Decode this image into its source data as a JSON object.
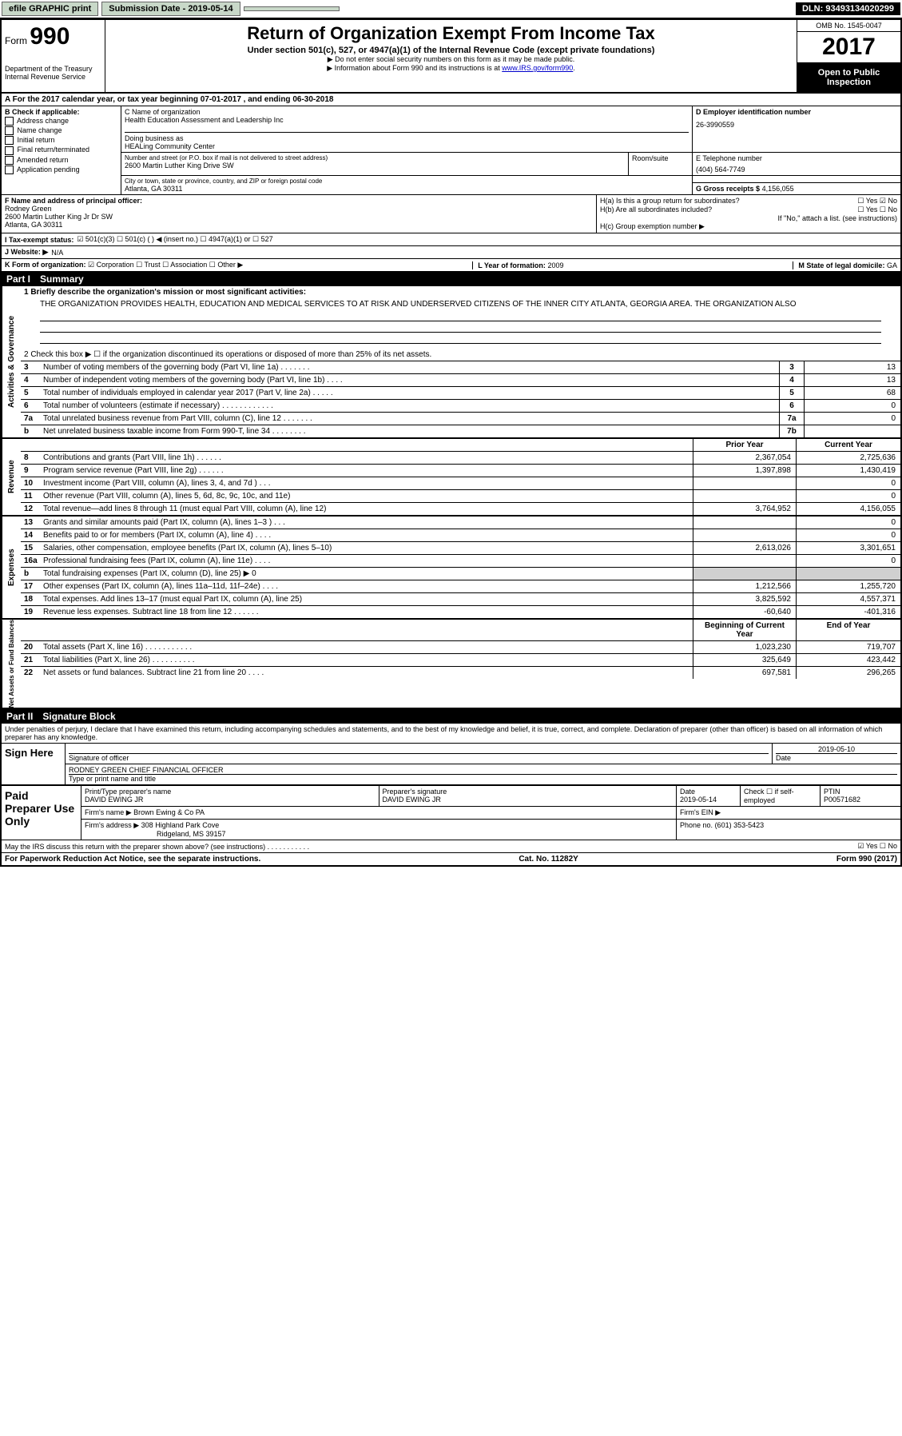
{
  "topbar": {
    "efile": "efile GRAPHIC print",
    "submission_label": "Submission Date - 2019-05-14",
    "dln": "DLN: 93493134020299"
  },
  "header": {
    "form_prefix": "Form",
    "form_number": "990",
    "dept": "Department of the Treasury",
    "irs": "Internal Revenue Service",
    "title": "Return of Organization Exempt From Income Tax",
    "subtitle": "Under section 501(c), 527, or 4947(a)(1) of the Internal Revenue Code (except private foundations)",
    "note1": "▶ Do not enter social security numbers on this form as it may be made public.",
    "note2": "▶ Information about Form 990 and its instructions is at www.IRS.gov/form990.",
    "omb": "OMB No. 1545-0047",
    "year": "2017",
    "open": "Open to Public Inspection"
  },
  "line_a": "A For the 2017 calendar year, or tax year beginning 07-01-2017    , and ending 06-30-2018",
  "box_b": {
    "header": "B Check if applicable:",
    "items": [
      "Address change",
      "Name change",
      "Initial return",
      "Final return/terminated",
      "Amended return",
      "Application pending"
    ]
  },
  "box_c": {
    "name_label": "C Name of organization",
    "name": "Health Education Assessment and Leadership Inc",
    "dba_label": "Doing business as",
    "dba": "HEALing Community Center",
    "addr_label": "Number and street (or P.O. box if mail is not delivered to street address)",
    "addr": "2600 Martin Luther King Drive SW",
    "room_label": "Room/suite",
    "city_label": "City or town, state or province, country, and ZIP or foreign postal code",
    "city": "Atlanta, GA  30311"
  },
  "box_d": {
    "label": "D Employer identification number",
    "value": "26-3990559"
  },
  "box_e": {
    "label": "E Telephone number",
    "value": "(404) 564-7749"
  },
  "box_g": {
    "label": "G Gross receipts $",
    "value": "4,156,055"
  },
  "box_f": {
    "label": "F Name and address of principal officer:",
    "name": "Rodney Green",
    "addr1": "2600 Martin Luther King Jr Dr SW",
    "addr2": "Atlanta, GA  30311"
  },
  "box_h": {
    "ha": "H(a) Is this a group return for subordinates?",
    "ha_yn": "☐ Yes ☑ No",
    "hb": "H(b) Are all subordinates included?",
    "hb_yn": "☐ Yes ☐ No",
    "hb_note": "If \"No,\" attach a list. (see instructions)",
    "hc": "H(c) Group exemption number ▶"
  },
  "line_i": {
    "label": "I    Tax-exempt status:",
    "opts": "☑ 501(c)(3)   ☐ 501(c) (  ) ◀ (insert no.)   ☐ 4947(a)(1) or   ☐ 527"
  },
  "line_j": {
    "label": "J    Website: ▶",
    "value": "N/A"
  },
  "line_k": {
    "label": "K Form of organization:",
    "opts": "☑ Corporation  ☐ Trust  ☐ Association  ☐ Other ▶"
  },
  "line_l": {
    "label": "L Year of formation:",
    "value": "2009"
  },
  "line_m": {
    "label": "M State of legal domicile:",
    "value": "GA"
  },
  "part1": {
    "header": "Part I",
    "title": "Summary",
    "l1": "1  Briefly describe the organization's mission or most significant activities:",
    "mission": "THE ORGANIZATION PROVIDES HEALTH, EDUCATION AND MEDICAL SERVICES TO AT RISK AND UNDERSERVED CITIZENS OF THE INNER CITY ATLANTA, GEORGIA AREA. THE ORGANIZATION ALSO",
    "l2": "2  Check this box ▶ ☐ if the organization discontinued its operations or disposed of more than 25% of its net assets.",
    "vtabs": {
      "ag": "Activities & Governance",
      "rev": "Revenue",
      "exp": "Expenses",
      "net": "Net Assets or Fund Balances"
    },
    "gov_rows": [
      {
        "num": "3",
        "label": "Number of voting members of the governing body (Part VI, line 1a)  .  .  .  .  .  .  .",
        "box": "3",
        "val": "13"
      },
      {
        "num": "4",
        "label": "Number of independent voting members of the governing body (Part VI, line 1b)  .  .  .  .",
        "box": "4",
        "val": "13"
      },
      {
        "num": "5",
        "label": "Total number of individuals employed in calendar year 2017 (Part V, line 2a)  .  .  .  .  .",
        "box": "5",
        "val": "68"
      },
      {
        "num": "6",
        "label": "Total number of volunteers (estimate if necessary)  .  .  .  .  .  .  .  .  .  .  .  .",
        "box": "6",
        "val": "0"
      },
      {
        "num": "7a",
        "label": "Total unrelated business revenue from Part VIII, column (C), line 12  .  .  .  .  .  .  .",
        "box": "7a",
        "val": "0"
      },
      {
        "num": "b",
        "label": "Net unrelated business taxable income from Form 990-T, line 34  .  .  .  .  .  .  .  .",
        "box": "7b",
        "val": ""
      }
    ],
    "col_prior": "Prior Year",
    "col_curr": "Current Year",
    "rev_rows": [
      {
        "num": "8",
        "label": "Contributions and grants (Part VIII, line 1h)  .  .  .  .  .  .",
        "prior": "2,367,054",
        "curr": "2,725,636"
      },
      {
        "num": "9",
        "label": "Program service revenue (Part VIII, line 2g)  .  .  .  .  .  .",
        "prior": "1,397,898",
        "curr": "1,430,419"
      },
      {
        "num": "10",
        "label": "Investment income (Part VIII, column (A), lines 3, 4, and 7d )  .  .  .",
        "prior": "",
        "curr": "0"
      },
      {
        "num": "11",
        "label": "Other revenue (Part VIII, column (A), lines 5, 6d, 8c, 9c, 10c, and 11e)",
        "prior": "",
        "curr": "0"
      },
      {
        "num": "12",
        "label": "Total revenue—add lines 8 through 11 (must equal Part VIII, column (A), line 12)",
        "prior": "3,764,952",
        "curr": "4,156,055"
      }
    ],
    "exp_rows": [
      {
        "num": "13",
        "label": "Grants and similar amounts paid (Part IX, column (A), lines 1–3 )  .  .  .",
        "prior": "",
        "curr": "0"
      },
      {
        "num": "14",
        "label": "Benefits paid to or for members (Part IX, column (A), line 4)  .  .  .  .",
        "prior": "",
        "curr": "0"
      },
      {
        "num": "15",
        "label": "Salaries, other compensation, employee benefits (Part IX, column (A), lines 5–10)",
        "prior": "2,613,026",
        "curr": "3,301,651"
      },
      {
        "num": "16a",
        "label": "Professional fundraising fees (Part IX, column (A), line 11e)  .  .  .  .",
        "prior": "",
        "curr": "0"
      },
      {
        "num": "b",
        "label": "Total fundraising expenses (Part IX, column (D), line 25) ▶ 0",
        "prior": "GREY",
        "curr": "GREY"
      },
      {
        "num": "17",
        "label": "Other expenses (Part IX, column (A), lines 11a–11d, 11f–24e)  .  .  .  .",
        "prior": "1,212,566",
        "curr": "1,255,720"
      },
      {
        "num": "18",
        "label": "Total expenses. Add lines 13–17 (must equal Part IX, column (A), line 25)",
        "prior": "3,825,592",
        "curr": "4,557,371"
      },
      {
        "num": "19",
        "label": "Revenue less expenses. Subtract line 18 from line 12  .  .  .  .  .  .",
        "prior": "-60,640",
        "curr": "-401,316"
      }
    ],
    "col_beg": "Beginning of Current Year",
    "col_end": "End of Year",
    "net_rows": [
      {
        "num": "20",
        "label": "Total assets (Part X, line 16)  .  .  .  .  .  .  .  .  .  .  .",
        "prior": "1,023,230",
        "curr": "719,707"
      },
      {
        "num": "21",
        "label": "Total liabilities (Part X, line 26)  .  .  .  .  .  .  .  .  .  .",
        "prior": "325,649",
        "curr": "423,442"
      },
      {
        "num": "22",
        "label": "Net assets or fund balances. Subtract line 21 from line 20  .  .  .  .",
        "prior": "697,581",
        "curr": "296,265"
      }
    ]
  },
  "part2": {
    "header": "Part II",
    "title": "Signature Block",
    "decl": "Under penalties of perjury, I declare that I have examined this return, including accompanying schedules and statements, and to the best of my knowledge and belief, it is true, correct, and complete. Declaration of preparer (other than officer) is based on all information of which preparer has any knowledge.",
    "sign_here": "Sign Here",
    "sig_officer_label": "Signature of officer",
    "sig_date_label": "Date",
    "sig_date": "2019-05-10",
    "officer_name": "RODNEY GREEN  CHIEF FINANCIAL OFFICER",
    "officer_name_label": "Type or print name and title",
    "paid_prep": "Paid Preparer Use Only",
    "prep_name_label": "Print/Type preparer's name",
    "prep_name": "DAVID EWING JR",
    "prep_sig_label": "Preparer's signature",
    "prep_sig": "DAVID EWING JR",
    "prep_date_label": "Date",
    "prep_date": "2019-05-14",
    "prep_check": "Check ☐ if self-employed",
    "ptin_label": "PTIN",
    "ptin": "P00571682",
    "firm_name_label": "Firm's name      ▶",
    "firm_name": "Brown Ewing & Co PA",
    "firm_ein_label": "Firm's EIN ▶",
    "firm_addr_label": "Firm's address ▶",
    "firm_addr": "308 Highland Park Cove",
    "firm_city": "Ridgeland, MS  39157",
    "firm_phone_label": "Phone no.",
    "firm_phone": "(601) 353-5423",
    "discuss": "May the IRS discuss this return with the preparer shown above? (see instructions)  .  .  .  .  .  .  .  .  .  .  .",
    "discuss_yn": "☑ Yes  ☐ No"
  },
  "footer": {
    "pra": "For Paperwork Reduction Act Notice, see the separate instructions.",
    "cat": "Cat. No. 11282Y",
    "form": "Form 990 (2017)"
  },
  "colors": {
    "topbtn_bg": "#c8d8c8",
    "black": "#000000",
    "grey": "#d0d0d0",
    "link": "#0000cc"
  }
}
